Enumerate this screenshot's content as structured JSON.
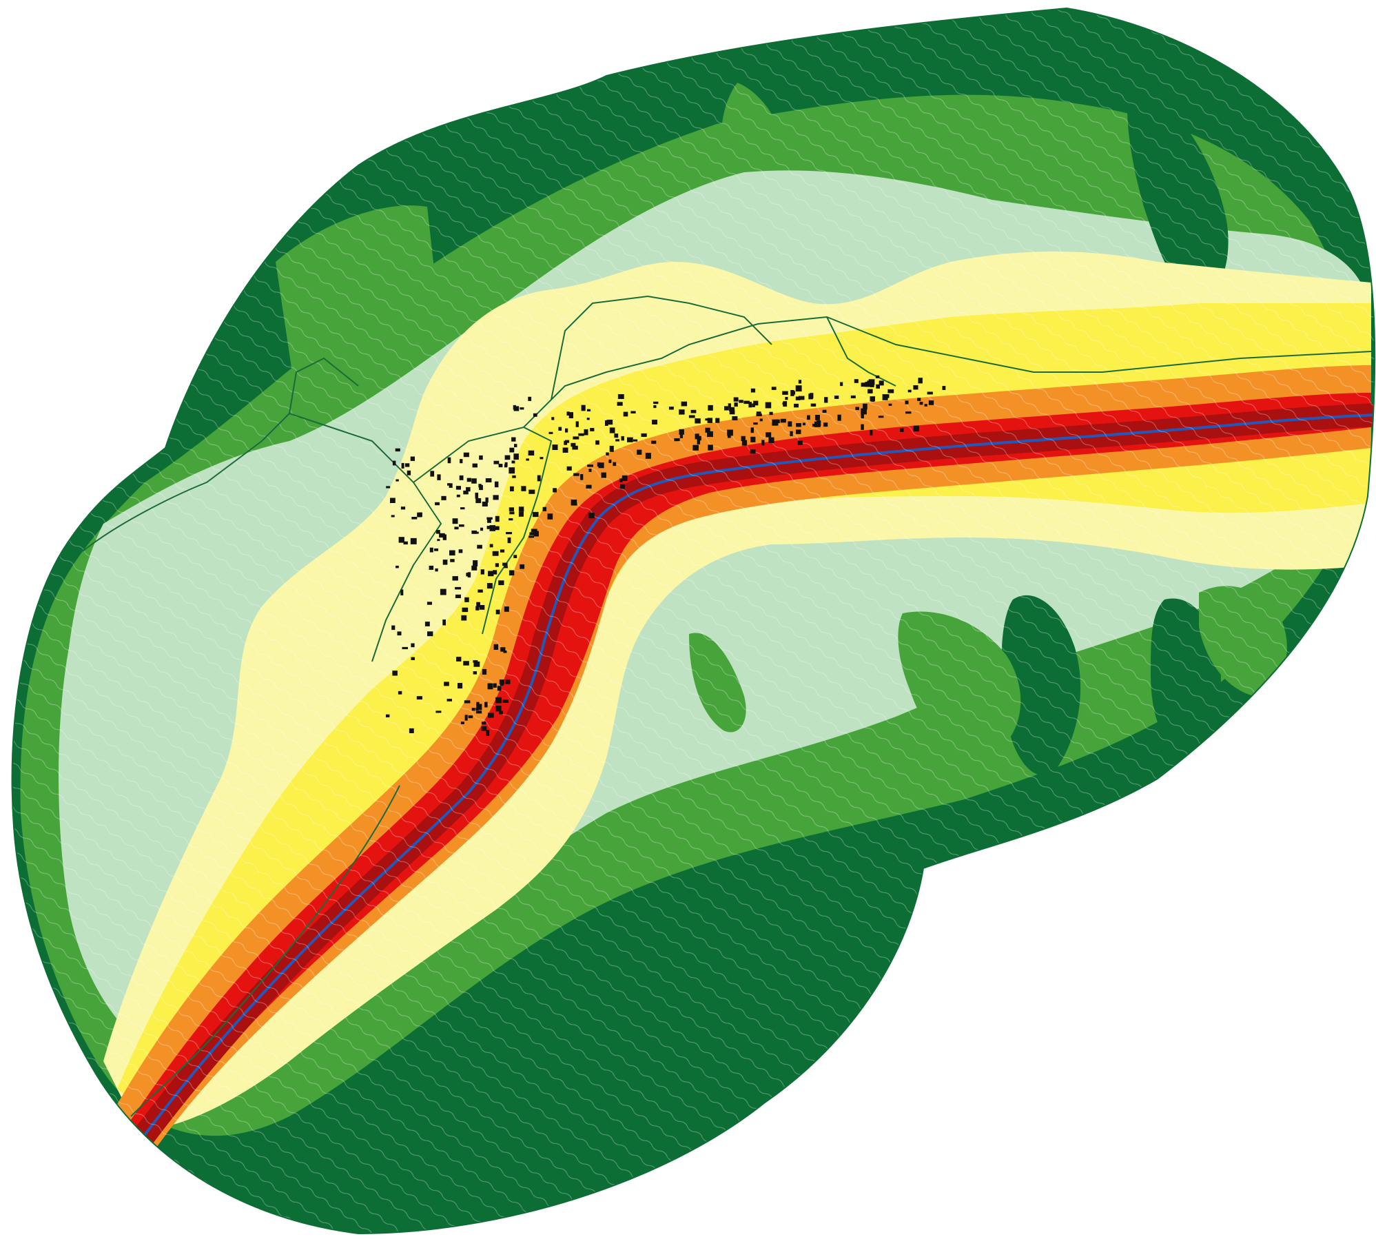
{
  "map": {
    "kind": "noise contour map along a road corridor",
    "palette": {
      "background": "#ffffff",
      "dark_green": "#0c6e34",
      "mid_green": "#46a43a",
      "light_green": "#bfe2c2",
      "pale_yellow": "#fbf7a8",
      "yellow": "#fcf04a",
      "orange": "#f39127",
      "red": "#e4130f",
      "dark_red": "#aa1010",
      "road_stripe": "#2458b8",
      "contour_line": "#ffffff",
      "boundary_line": "#1b6b3a",
      "building": "#111111"
    },
    "features": {
      "noise_bands": [
        "dark-green",
        "mid-green",
        "light-green",
        "pale-yellow",
        "yellow",
        "orange",
        "red",
        "dark-red"
      ],
      "road": "road-centerline-blue",
      "settlement": "building-footprints"
    }
  }
}
